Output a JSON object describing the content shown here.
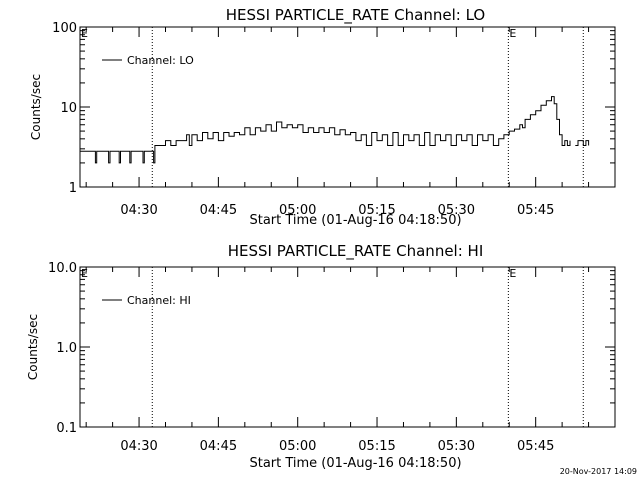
{
  "footer": {
    "timestamp": "20-Nov-2017 14:09"
  },
  "chart_data": [
    {
      "type": "line",
      "title": "HESSI PARTICLE_RATE Channel: LO",
      "xlabel": "Start Time (01-Aug-16 04:18:50)",
      "ylabel": "Counts/sec",
      "y_scale": "log",
      "ylim": [
        1,
        100
      ],
      "y_ticks": [
        {
          "value": 1,
          "label": "1"
        },
        {
          "value": 10,
          "label": "10"
        },
        {
          "value": 100,
          "label": "100"
        }
      ],
      "x_range": [
        "04:18:50",
        "06:00:00"
      ],
      "x_ticks": [
        "04:30",
        "04:45",
        "05:00",
        "05:15",
        "05:30",
        "05:45"
      ],
      "legend": {
        "entries": [
          "Channel: LO"
        ],
        "position": "top-left"
      },
      "markers": [
        {
          "time": "04:32:30",
          "label": ""
        },
        {
          "time": "05:39:50",
          "label": "E"
        },
        {
          "time": "05:54:00",
          "label": ""
        }
      ],
      "edge_label": "E",
      "series": [
        {
          "name": "Channel: LO",
          "gap": [
            "05:51:30",
            "05:52:30"
          ],
          "points": [
            [
              "04:18:50",
              2.8
            ],
            [
              "04:21:30",
              2.8
            ],
            [
              "04:21:45",
              2.0
            ],
            [
              "04:22:00",
              2.8
            ],
            [
              "04:24:00",
              2.8
            ],
            [
              "04:24:15",
              2.0
            ],
            [
              "04:24:30",
              2.8
            ],
            [
              "04:26:00",
              2.8
            ],
            [
              "04:26:15",
              2.0
            ],
            [
              "04:26:30",
              2.8
            ],
            [
              "04:28:00",
              2.8
            ],
            [
              "04:28:15",
              2.0
            ],
            [
              "04:28:30",
              2.8
            ],
            [
              "04:30:30",
              2.8
            ],
            [
              "04:30:45",
              2.0
            ],
            [
              "04:31:00",
              2.8
            ],
            [
              "04:32:30",
              2.8
            ],
            [
              "04:32:45",
              2.0
            ],
            [
              "04:33:00",
              3.3
            ],
            [
              "04:35:00",
              3.8
            ],
            [
              "04:36:00",
              3.3
            ],
            [
              "04:37:00",
              3.8
            ],
            [
              "04:38:00",
              3.8
            ],
            [
              "04:39:00",
              4.5
            ],
            [
              "04:39:30",
              3.3
            ],
            [
              "04:40:00",
              4.5
            ],
            [
              "04:41:00",
              3.8
            ],
            [
              "04:42:00",
              4.8
            ],
            [
              "04:43:00",
              4.0
            ],
            [
              "04:44:00",
              4.8
            ],
            [
              "04:45:00",
              3.8
            ],
            [
              "04:46:00",
              4.8
            ],
            [
              "04:47:00",
              4.3
            ],
            [
              "04:48:00",
              4.8
            ],
            [
              "04:49:00",
              4.5
            ],
            [
              "04:50:00",
              5.5
            ],
            [
              "04:51:00",
              4.5
            ],
            [
              "04:52:00",
              5.5
            ],
            [
              "04:53:00",
              5.0
            ],
            [
              "04:54:00",
              6.0
            ],
            [
              "04:55:00",
              5.0
            ],
            [
              "04:56:00",
              6.5
            ],
            [
              "04:57:00",
              5.5
            ],
            [
              "04:58:00",
              6.0
            ],
            [
              "04:59:00",
              5.5
            ],
            [
              "05:00:00",
              6.0
            ],
            [
              "05:01:00",
              4.8
            ],
            [
              "05:02:00",
              5.5
            ],
            [
              "05:03:00",
              4.8
            ],
            [
              "05:04:00",
              5.5
            ],
            [
              "05:05:00",
              4.8
            ],
            [
              "05:06:00",
              5.5
            ],
            [
              "05:07:00",
              4.5
            ],
            [
              "05:08:00",
              5.2
            ],
            [
              "05:09:00",
              4.5
            ],
            [
              "05:10:00",
              4.8
            ],
            [
              "05:11:00",
              3.8
            ],
            [
              "05:12:00",
              4.5
            ],
            [
              "05:13:00",
              3.3
            ],
            [
              "05:14:00",
              4.8
            ],
            [
              "05:15:00",
              3.8
            ],
            [
              "05:16:00",
              4.5
            ],
            [
              "05:17:00",
              3.3
            ],
            [
              "05:18:00",
              4.8
            ],
            [
              "05:19:00",
              3.3
            ],
            [
              "05:20:00",
              4.5
            ],
            [
              "05:21:00",
              3.8
            ],
            [
              "05:22:00",
              4.5
            ],
            [
              "05:23:00",
              3.3
            ],
            [
              "05:24:00",
              4.8
            ],
            [
              "05:25:00",
              3.3
            ],
            [
              "05:26:00",
              4.5
            ],
            [
              "05:27:00",
              3.8
            ],
            [
              "05:28:00",
              4.5
            ],
            [
              "05:29:00",
              3.3
            ],
            [
              "05:30:00",
              4.5
            ],
            [
              "05:31:00",
              3.8
            ],
            [
              "05:32:00",
              4.5
            ],
            [
              "05:33:00",
              3.3
            ],
            [
              "05:34:00",
              4.5
            ],
            [
              "05:35:00",
              3.8
            ],
            [
              "05:36:00",
              4.5
            ],
            [
              "05:37:00",
              3.3
            ],
            [
              "05:38:00",
              4.0
            ],
            [
              "05:39:00",
              4.5
            ],
            [
              "05:40:00",
              5.0
            ],
            [
              "05:41:00",
              5.3
            ],
            [
              "05:42:00",
              6.0
            ],
            [
              "05:42:30",
              5.5
            ],
            [
              "05:43:00",
              7.0
            ],
            [
              "05:44:00",
              8.0
            ],
            [
              "05:45:00",
              9.0
            ],
            [
              "05:46:00",
              10.5
            ],
            [
              "05:47:00",
              12.0
            ],
            [
              "05:48:00",
              13.5
            ],
            [
              "05:48:30",
              11.0
            ],
            [
              "05:49:00",
              7.0
            ],
            [
              "05:49:30",
              4.5
            ],
            [
              "05:50:00",
              3.3
            ],
            [
              "05:50:30",
              3.8
            ],
            [
              "05:51:00",
              3.3
            ],
            [
              "05:51:30",
              3.8
            ],
            [
              "05:52:30",
              3.3
            ],
            [
              "05:53:00",
              3.8
            ],
            [
              "05:54:00",
              3.3
            ],
            [
              "05:54:30",
              3.8
            ],
            [
              "05:55:00",
              3.3
            ]
          ]
        }
      ]
    },
    {
      "type": "line",
      "title": "HESSI PARTICLE_RATE Channel: HI",
      "xlabel": "Start Time (01-Aug-16 04:18:50)",
      "ylabel": "Counts/sec",
      "y_scale": "log",
      "ylim": [
        0.1,
        10
      ],
      "y_ticks": [
        {
          "value": 0.1,
          "label": "0.1"
        },
        {
          "value": 1,
          "label": "1.0"
        },
        {
          "value": 10,
          "label": "10.0"
        }
      ],
      "x_range": [
        "04:18:50",
        "06:00:00"
      ],
      "x_ticks": [
        "04:30",
        "04:45",
        "05:00",
        "05:15",
        "05:30",
        "05:45"
      ],
      "legend": {
        "entries": [
          "Channel: HI"
        ],
        "position": "top-left"
      },
      "markers": [
        {
          "time": "04:32:30",
          "label": ""
        },
        {
          "time": "05:39:50",
          "label": "E"
        },
        {
          "time": "05:54:00",
          "label": ""
        }
      ],
      "edge_label": "E",
      "series": [
        {
          "name": "Channel: HI",
          "points": []
        }
      ]
    }
  ]
}
